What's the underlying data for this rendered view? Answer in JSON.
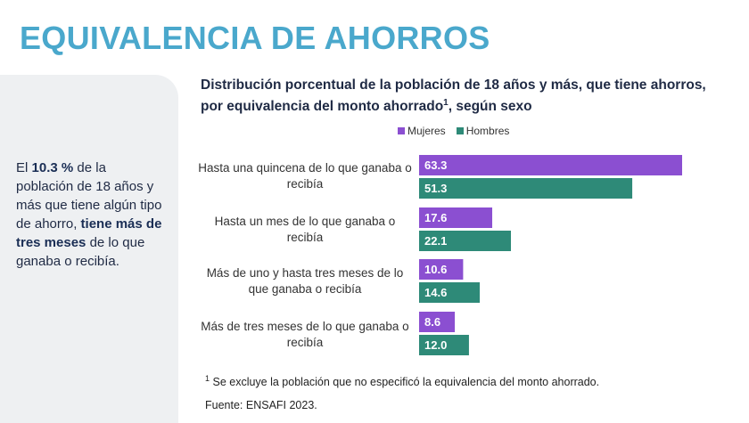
{
  "page": {
    "title": "EQUIVALENCIA DE AHORROS"
  },
  "side": {
    "t1": "El ",
    "t2": "10.3 %",
    "t3": " de la población de 18 años y más que tiene algún tipo de ahorro, ",
    "t4": "tiene más de tres meses",
    "t5": " de lo que ganaba o recibía."
  },
  "chart_title": {
    "main": "Distribución porcentual de la población de 18 años y más, que tiene ahorros, por equivalencia del monto ahorrado",
    "sup": "1",
    "tail": ", según sexo"
  },
  "chart_data": {
    "type": "bar",
    "orientation": "horizontal",
    "categories": [
      "Hasta una quincena de lo que ganaba o recibía",
      "Hasta un mes de lo que ganaba o recibía",
      "Más de uno y hasta tres meses de lo que ganaba o recibía",
      "Más de tres meses de lo que ganaba o recibía"
    ],
    "series": [
      {
        "name": "Mujeres",
        "color": "#8b4fd1",
        "values": [
          63.3,
          17.6,
          10.6,
          8.6
        ]
      },
      {
        "name": "Hombres",
        "color": "#2e8a78",
        "values": [
          51.3,
          22.1,
          14.6,
          12.0
        ]
      }
    ],
    "value_labels": [
      [
        "63.3",
        "17.6",
        "10.6",
        "8.6"
      ],
      [
        "51.3",
        "22.1",
        "14.6",
        "12.0"
      ]
    ],
    "xlim": [
      0,
      63.3
    ],
    "grid": false,
    "legend": "top"
  },
  "footnote": {
    "sup": "1",
    "text": " Se excluye la población que no especificó la equivalencia del monto ahorrado."
  },
  "source": "Fuente: ENSAFI 2023."
}
